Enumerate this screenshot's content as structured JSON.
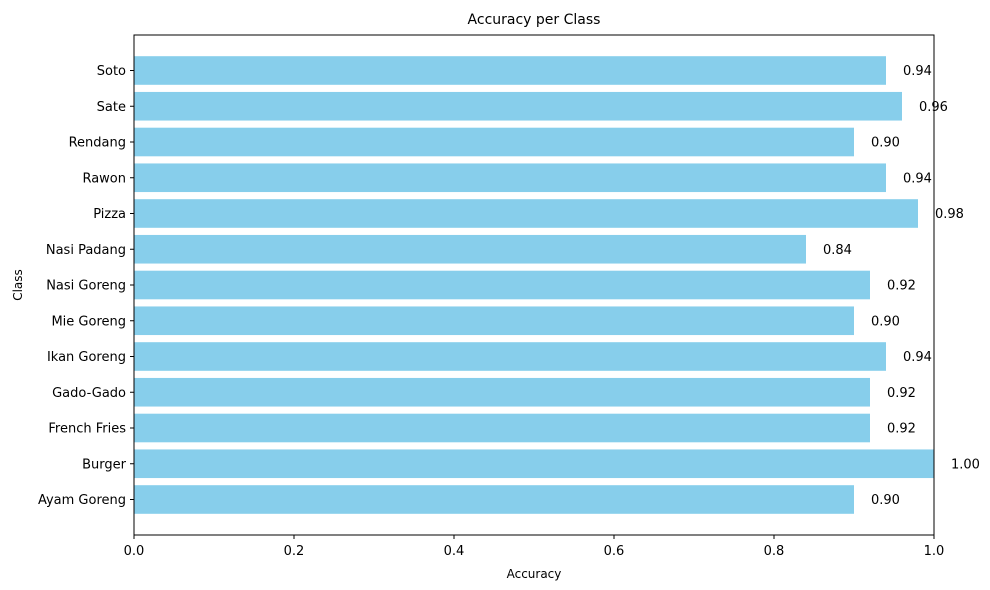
{
  "chart_data": {
    "type": "bar",
    "orientation": "horizontal",
    "title": "Accuracy per Class",
    "xlabel": "Accuracy",
    "ylabel": "Class",
    "xlim": [
      0,
      1.0
    ],
    "xticks": [
      {
        "value": 0.0,
        "label": "0.0"
      },
      {
        "value": 0.2,
        "label": "0.2"
      },
      {
        "value": 0.4,
        "label": "0.4"
      },
      {
        "value": 0.6,
        "label": "0.6"
      },
      {
        "value": 0.8,
        "label": "0.8"
      },
      {
        "value": 1.0,
        "label": "1.0"
      }
    ],
    "categories": [
      "Ayam Goreng",
      "Burger",
      "French Fries",
      "Gado-Gado",
      "Ikan Goreng",
      "Mie Goreng",
      "Nasi Goreng",
      "Nasi Padang",
      "Pizza",
      "Rawon",
      "Rendang",
      "Sate",
      "Soto"
    ],
    "values": [
      0.9,
      1.0,
      0.92,
      0.92,
      0.94,
      0.9,
      0.92,
      0.84,
      0.98,
      0.94,
      0.9,
      0.96,
      0.94
    ],
    "value_labels": [
      "0.90",
      "1.00",
      "0.92",
      "0.92",
      "0.94",
      "0.90",
      "0.92",
      "0.84",
      "0.98",
      "0.94",
      "0.90",
      "0.96",
      "0.94"
    ],
    "bar_color": "#87ceeb",
    "grid": false,
    "legend": "none"
  }
}
